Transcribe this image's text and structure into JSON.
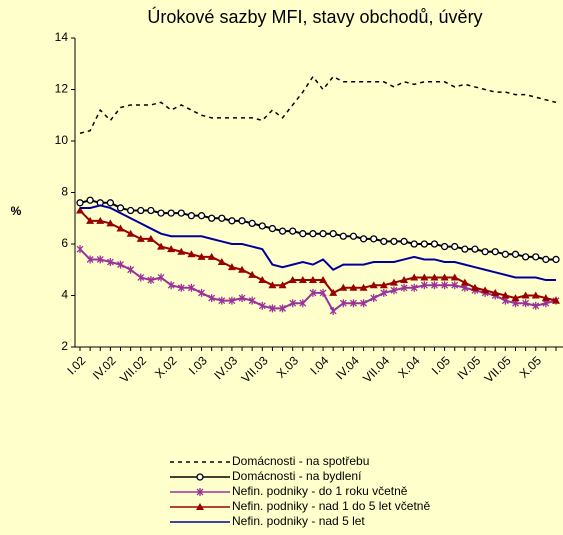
{
  "chart_data": {
    "type": "line",
    "title": "Úrokové sazby MFI, stavy obchodů, úvěry",
    "y_label": "%",
    "categories": [
      "I.02",
      null,
      null,
      "IV.02",
      null,
      null,
      "VII.02",
      null,
      null,
      "X.02",
      null,
      null,
      "I.03",
      null,
      null,
      "IV.03",
      null,
      null,
      "VII.03",
      null,
      null,
      "X.03",
      null,
      null,
      "I.04",
      null,
      null,
      "IV.04",
      null,
      null,
      "VII.04",
      null,
      null,
      "X.04",
      null,
      null,
      "I.05",
      null,
      null,
      "IV.05",
      null,
      null,
      "VII.05",
      null,
      null,
      "X.05",
      null,
      null
    ],
    "ylim": [
      2,
      14
    ],
    "yticks": [
      2,
      4,
      6,
      8,
      10,
      12,
      14
    ],
    "series": [
      {
        "name": "Domácnosti - na spotřebu",
        "color": "#000000",
        "line_style": "dashed",
        "values": [
          10.3,
          10.4,
          11.2,
          10.8,
          11.3,
          11.4,
          11.4,
          11.4,
          11.5,
          11.2,
          11.4,
          11.2,
          11.0,
          10.9,
          10.9,
          10.9,
          10.9,
          10.9,
          10.8,
          11.2,
          10.9,
          11.4,
          11.9,
          12.5,
          12.0,
          12.5,
          12.3,
          12.3,
          12.3,
          12.3,
          12.3,
          12.1,
          12.3,
          12.2,
          12.3,
          12.3,
          12.3,
          12.1,
          12.2,
          12.1,
          12.0,
          11.9,
          11.9,
          11.8,
          11.8,
          11.7,
          11.6,
          11.5
        ]
      },
      {
        "name": "Domácnosti - na bydlení",
        "color": "#000000",
        "marker": "circle",
        "values": [
          7.6,
          7.7,
          7.6,
          7.6,
          7.4,
          7.3,
          7.3,
          7.3,
          7.2,
          7.2,
          7.2,
          7.1,
          7.1,
          7.0,
          7.0,
          6.9,
          6.9,
          6.8,
          6.7,
          6.6,
          6.5,
          6.5,
          6.4,
          6.4,
          6.4,
          6.4,
          6.3,
          6.3,
          6.2,
          6.2,
          6.1,
          6.1,
          6.1,
          6.0,
          6.0,
          6.0,
          5.9,
          5.9,
          5.8,
          5.8,
          5.7,
          5.7,
          5.6,
          5.6,
          5.5,
          5.5,
          5.4,
          5.4
        ]
      },
      {
        "name": "Nefin. podniky - do 1 roku včetně",
        "color": "#993399",
        "marker": "star",
        "values": [
          5.8,
          5.4,
          5.4,
          5.3,
          5.2,
          5.0,
          4.7,
          4.6,
          4.7,
          4.4,
          4.3,
          4.3,
          4.1,
          3.9,
          3.8,
          3.8,
          3.9,
          3.8,
          3.6,
          3.5,
          3.5,
          3.7,
          3.7,
          4.1,
          4.1,
          3.4,
          3.7,
          3.7,
          3.7,
          3.9,
          4.1,
          4.2,
          4.3,
          4.3,
          4.4,
          4.4,
          4.4,
          4.4,
          4.3,
          4.2,
          4.1,
          4.0,
          3.8,
          3.7,
          3.7,
          3.6,
          3.7,
          3.8
        ]
      },
      {
        "name": "Nefin. podniky - nad 1 do 5 let včetně",
        "color": "#990000",
        "marker": "triangle",
        "values": [
          7.3,
          6.9,
          6.9,
          6.8,
          6.6,
          6.4,
          6.2,
          6.2,
          5.9,
          5.8,
          5.7,
          5.6,
          5.5,
          5.5,
          5.3,
          5.1,
          5.0,
          4.8,
          4.6,
          4.4,
          4.4,
          4.6,
          4.6,
          4.6,
          4.6,
          4.1,
          4.3,
          4.3,
          4.3,
          4.4,
          4.4,
          4.5,
          4.6,
          4.7,
          4.7,
          4.7,
          4.7,
          4.7,
          4.5,
          4.3,
          4.2,
          4.1,
          4.0,
          3.9,
          4.0,
          4.0,
          3.9,
          3.8
        ]
      },
      {
        "name": "Nefin. podniky - nad 5 let",
        "color": "#000099",
        "values": [
          7.4,
          7.4,
          7.5,
          7.4,
          7.2,
          7.0,
          6.8,
          6.6,
          6.4,
          6.3,
          6.3,
          6.3,
          6.3,
          6.2,
          6.1,
          6.0,
          6.0,
          5.9,
          5.8,
          5.2,
          5.1,
          5.2,
          5.3,
          5.2,
          5.4,
          5.0,
          5.2,
          5.2,
          5.2,
          5.3,
          5.3,
          5.3,
          5.4,
          5.5,
          5.4,
          5.4,
          5.3,
          5.3,
          5.2,
          5.1,
          5.0,
          4.9,
          4.8,
          4.7,
          4.7,
          4.7,
          4.6,
          4.6
        ]
      }
    ]
  }
}
